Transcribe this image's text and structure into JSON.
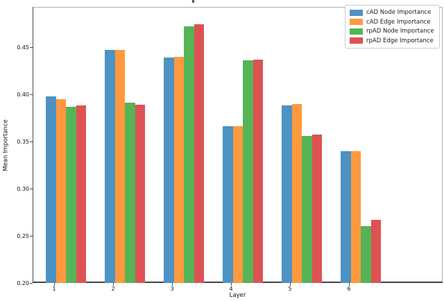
{
  "chart_data": {
    "type": "bar",
    "categories": [
      "1",
      "2",
      "3",
      "4",
      "5",
      "6"
    ],
    "series": [
      {
        "name": "cAD Node Importance",
        "color": "#4c92c3",
        "values": [
          0.398,
          0.447,
          0.439,
          0.366,
          0.388,
          0.34
        ]
      },
      {
        "name": "cAD Edge Importance",
        "color": "#ff993e",
        "values": [
          0.395,
          0.447,
          0.44,
          0.366,
          0.39,
          0.34
        ]
      },
      {
        "name": "rpAD Node Importance",
        "color": "#56b356",
        "values": [
          0.387,
          0.391,
          0.472,
          0.436,
          0.356,
          0.26
        ]
      },
      {
        "name": "rpAD Edge Importance",
        "color": "#de5253",
        "values": [
          0.388,
          0.389,
          0.474,
          0.437,
          0.357,
          0.267
        ]
      }
    ],
    "xlabel": "Layer",
    "ylabel": "Mean Importance",
    "ylim": [
      0.2,
      0.4926
    ],
    "yticks": [
      "0.20",
      "0.25",
      "0.30",
      "0.35",
      "0.40",
      "0.45"
    ],
    "grid": false,
    "legend_position": "upper right"
  }
}
